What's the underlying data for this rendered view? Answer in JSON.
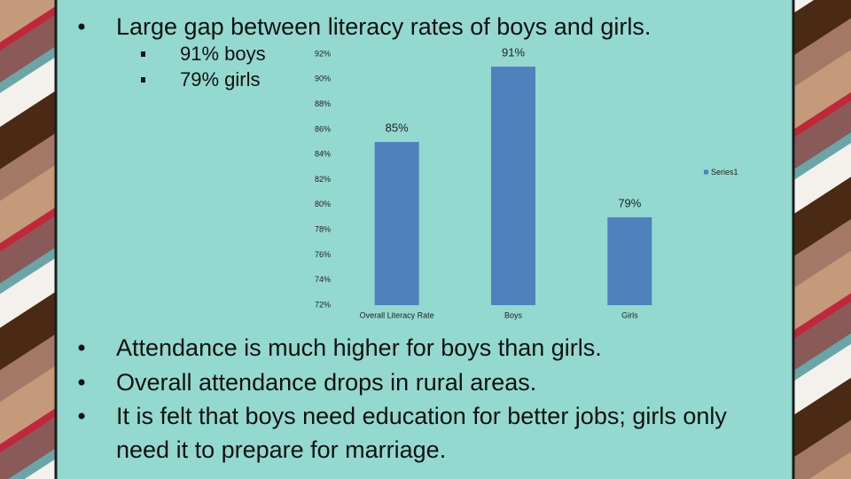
{
  "slide": {
    "top_bullet": "Large gap between literacy rates of boys and girls.",
    "sub_bullets": [
      "91% boys",
      "79% girls"
    ],
    "bottom_bullets": [
      "Attendance is much higher for boys than girls.",
      "Overall attendance drops in rural areas.",
      "It is felt that boys need education for better jobs; girls only need it to prepare for marriage."
    ]
  },
  "chart_data": {
    "type": "bar",
    "categories": [
      "Overall Literacy Rate",
      "Boys",
      "Girls"
    ],
    "series": [
      {
        "name": "Series1",
        "color": "#4f81bd",
        "values": [
          85,
          91,
          79
        ],
        "value_labels": [
          "85%",
          "91%",
          "79%"
        ]
      }
    ],
    "ylim": [
      72,
      92
    ],
    "yticks": [
      {
        "value": 72,
        "label": "72%"
      },
      {
        "value": 74,
        "label": "74%"
      },
      {
        "value": 76,
        "label": "76%"
      },
      {
        "value": 78,
        "label": "78%"
      },
      {
        "value": 80,
        "label": "80%"
      },
      {
        "value": 82,
        "label": "82%"
      },
      {
        "value": 84,
        "label": "84%"
      },
      {
        "value": 86,
        "label": "86%"
      },
      {
        "value": 88,
        "label": "88%"
      },
      {
        "value": 90,
        "label": "90%"
      },
      {
        "value": 92,
        "label": "92%"
      }
    ],
    "grid": false,
    "legend": "right"
  }
}
